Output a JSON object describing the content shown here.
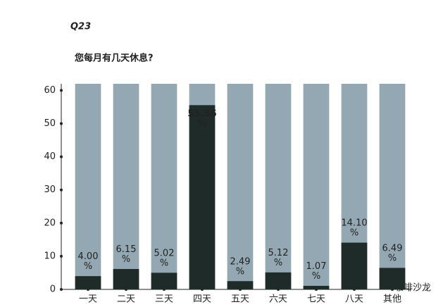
{
  "chart_data": {
    "type": "bar",
    "title": "Q23",
    "subtitle": "您每月有几天休息?",
    "categories": [
      "一天",
      "二天",
      "三天",
      "四天",
      "五天",
      "六天",
      "七天",
      "八天",
      "其他"
    ],
    "values": [
      4.0,
      6.15,
      5.02,
      55.56,
      2.49,
      5.12,
      1.07,
      14.1,
      6.49
    ],
    "value_labels": [
      "4.00 %",
      "6.15 %",
      "5.02 %",
      "55.56 %",
      "2.49 %",
      "5.12 %",
      "1.07 %",
      "14.10 %",
      "6.49 %"
    ],
    "color": "#1f2b28",
    "background_color": "#94a8b3",
    "ylim": [
      0,
      62
    ],
    "yticks": [
      0,
      10,
      20,
      30,
      40,
      50,
      60
    ],
    "watermark": "咖啡沙龙"
  }
}
